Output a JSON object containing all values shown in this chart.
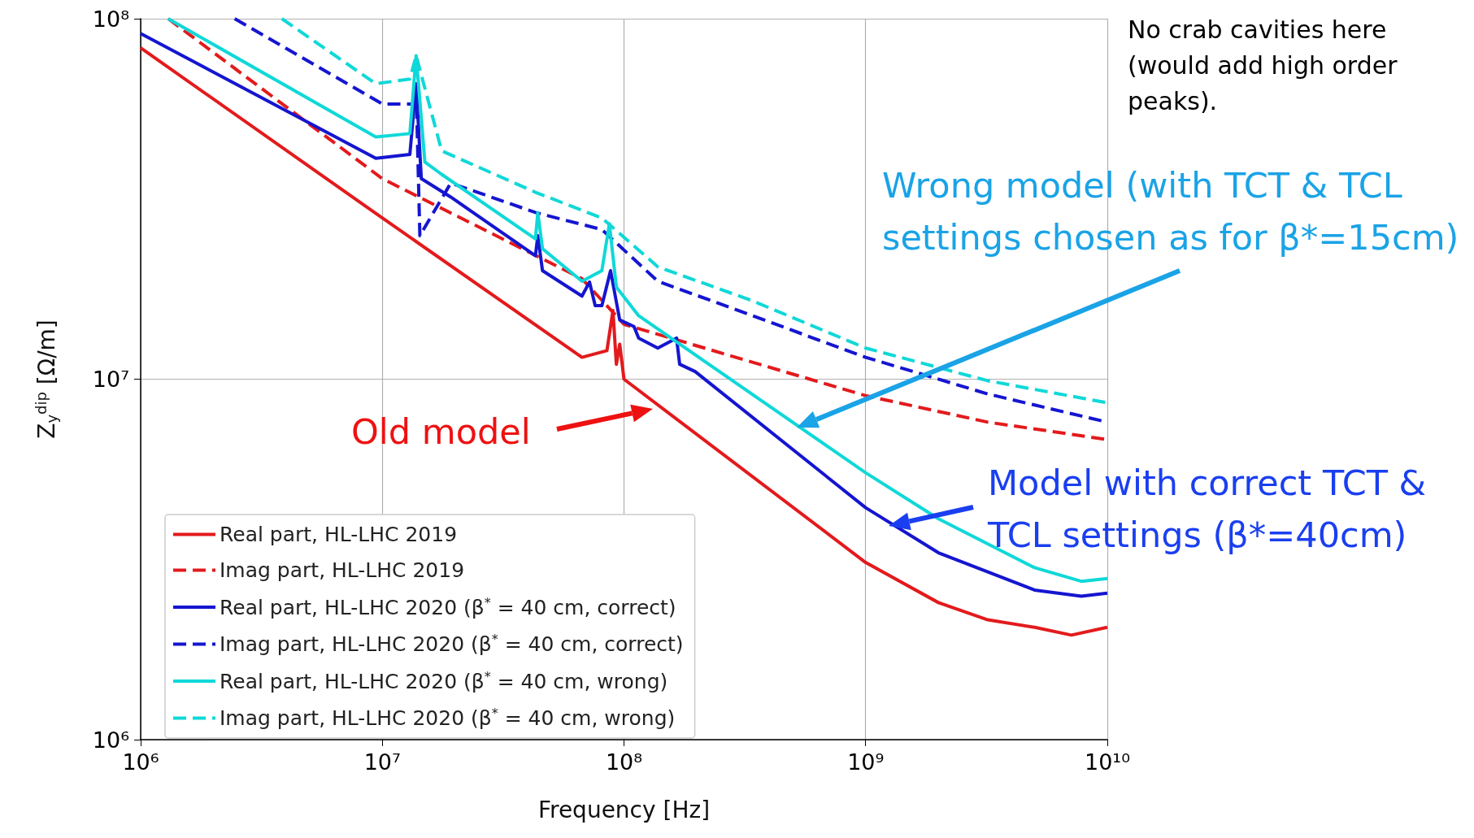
{
  "chart_data": {
    "type": "line",
    "xlabel": "Frequency [Hz]",
    "ylabel": "Z$_{y}$$^{dip}$ [Ω/m]",
    "log": "xy",
    "grid": true,
    "legend": "bottom left",
    "marker": "none",
    "xlim": [
      1000000,
      10000000000
    ],
    "ylim": [
      1000000,
      100000000
    ],
    "xticks": [
      {
        "value": 1000000,
        "label": "10⁶"
      },
      {
        "value": 10000000,
        "label": "10⁷"
      },
      {
        "value": 100000000,
        "label": "10⁸"
      },
      {
        "value": 1000000000,
        "label": "10⁹"
      },
      {
        "value": 10000000000,
        "label": "10¹⁰"
      }
    ],
    "yticks": [
      {
        "value": 1000000,
        "label": "10⁶"
      },
      {
        "value": 10000000,
        "label": "10⁷"
      },
      {
        "value": 100000000,
        "label": "10⁸"
      }
    ],
    "series": [
      {
        "name": "Real part, HL-LHC 2019",
        "color": "#e31a1c",
        "line_style": "solid",
        "x": [
          1000000.0,
          10000000.0,
          67000000.0,
          85000000.0,
          90000000.0,
          93000000.0,
          96000000.0,
          100000000.0,
          1000000000.0,
          2000000000.0,
          3200000000.0,
          5000000000.0,
          7100000000.0,
          10000000000.0
        ],
        "values": [
          83000000.0,
          28000000.0,
          11500000.0,
          12000000.0,
          15500000.0,
          11000000.0,
          12500000.0,
          10000000.0,
          3100000.0,
          2400000.0,
          2150000.0,
          2050000.0,
          1950000.0,
          2050000.0
        ]
      },
      {
        "name": "Imag part, HL-LHC 2019",
        "color": "#e31a1c",
        "line_style": "dashed",
        "x": [
          1300000.0,
          10000000.0,
          67000000.0,
          100000000.0,
          1000000000.0,
          3200000000.0,
          10000000000.0
        ],
        "values": [
          100000000.0,
          36000000.0,
          19000000.0,
          14200000.0,
          9000000.0,
          7600000.0,
          6800000.0
        ]
      },
      {
        "name": "Real part, HL-LHC 2020 (β$^{*}$ = 40 cm, correct)",
        "color": "#1515d0",
        "line_style": "solid",
        "x": [
          1000000.0,
          9400000.0,
          13000000.0,
          13800000.0,
          14500000.0,
          19200000.0,
          43000000.0,
          44000000.0,
          46000000.0,
          67000000.0,
          72000000.0,
          76000000.0,
          81000000.0,
          88000000.0,
          96000000.0,
          110000000.0,
          115000000.0,
          138000000.0,
          165000000.0,
          170000000.0,
          197000000.0,
          1000000000.0,
          2000000000.0,
          5000000000.0,
          7800000000.0,
          10000000000.0
        ],
        "values": [
          91000000.0,
          41000000.0,
          42000000.0,
          66000000.0,
          36000000.0,
          32000000.0,
          22000000.0,
          25000000.0,
          20000000.0,
          17000000.0,
          18600000.0,
          16000000.0,
          16000000.0,
          20000000.0,
          14600000.0,
          14000000.0,
          13000000.0,
          12200000.0,
          13000000.0,
          11000000.0,
          10500000.0,
          4400000.0,
          3300000.0,
          2600000.0,
          2500000.0,
          2550000.0
        ]
      },
      {
        "name": "Imag part, HL-LHC 2020 (β$^{*}$ = 40 cm, correct)",
        "color": "#1515d0",
        "line_style": "dashed",
        "x": [
          2450000.0,
          10000000.0,
          13400000.0,
          13800000.0,
          14300000.0,
          19200000.0,
          43000000.0,
          81000000.0,
          138000000.0,
          340000000.0,
          1000000000.0,
          3200000000.0,
          10000000000.0
        ],
        "values": [
          100000000.0,
          58000000.0,
          58000000.0,
          64000000.0,
          25000000.0,
          35000000.0,
          29000000.0,
          26000000.0,
          18700000.0,
          15000000.0,
          11500000.0,
          9100000.0,
          7600000.0
        ]
      },
      {
        "name": "Real part, HL-LHC 2020 (β$^{*}$ = 40 cm, wrong)",
        "color": "#10d8d8",
        "line_style": "solid",
        "x": [
          1300000.0,
          9400000.0,
          13000000.0,
          13800000.0,
          15000000.0,
          17600000.0,
          43000000.0,
          44000000.0,
          46000000.0,
          67000000.0,
          81000000.0,
          87000000.0,
          93000000.0,
          115000000.0,
          1000000000.0,
          2000000000.0,
          5000000000.0,
          7800000000.0,
          10000000000.0
        ],
        "values": [
          100000000.0,
          47000000.0,
          48000000.0,
          79000000.0,
          40000000.0,
          37000000.0,
          24500000.0,
          29000000.0,
          23000000.0,
          18700000.0,
          20000000.0,
          27000000.0,
          18000000.0,
          15000000.0,
          5500000.0,
          4100000.0,
          3000000.0,
          2750000.0,
          2800000.0
        ]
      },
      {
        "name": "Imag part, HL-LHC 2020 (β$^{*}$ = 40 cm, wrong)",
        "color": "#10d8d8",
        "line_style": "dashed",
        "x": [
          3840000.0,
          9400000.0,
          13000000.0,
          13800000.0,
          17600000.0,
          43000000.0,
          81000000.0,
          138000000.0,
          340000000.0,
          1000000000.0,
          3200000000.0,
          10000000000.0
        ],
        "values": [
          100000000.0,
          66000000.0,
          68000000.0,
          79000000.0,
          43000000.0,
          33000000.0,
          28000000.0,
          20500000.0,
          16500000.0,
          12200000.0,
          9900000.0,
          8600000.0
        ]
      }
    ],
    "annotations": [
      "No crab cavities here (would add high order peaks).",
      "Wrong model (with TCT & TCL settings chosen as for β*=15cm)",
      "Model with correct TCT & TCL settings (β*=40cm)",
      "Old model"
    ]
  }
}
